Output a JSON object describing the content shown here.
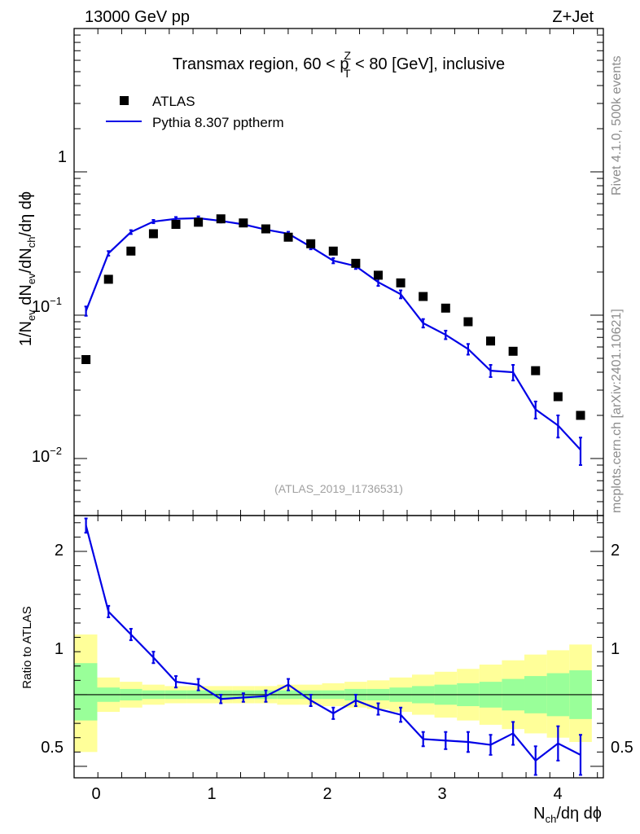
{
  "header": {
    "left": "13000 GeV pp",
    "right": "Z+Jet"
  },
  "side_labels": {
    "rivet": "Rivet 4.1.0,  500k events",
    "mcplots": "mcplots.cern.ch [arXiv:2401.10621]"
  },
  "chart_data": {
    "type": "scatter",
    "title": "Transmax region, 60 < p",
    "title_sup": "Z",
    "title_sub": "T",
    "title_end": " < 80 [GeV], inclusive",
    "watermark": "(ATLAS_2019_I1736531)",
    "xlabel": "N",
    "xlabel_sub": "ch",
    "xlabel_end": "/dη dϕ",
    "ylabel": "1/N",
    "ylabel_sub1": "ev",
    "ylabel_mid": " dN",
    "ylabel_sub2": "ev",
    "ylabel_mid2": "/dN",
    "ylabel_sub3": "ch",
    "ylabel_end": "/dη dϕ",
    "ratio_ylabel": "Ratio to ATLAS",
    "xlim": [
      -0.1,
      4.35
    ],
    "ylim": [
      0.004,
      10
    ],
    "ratio_ylim": [
      0.42,
      2.25
    ],
    "x_ticks": [
      "0",
      "1",
      "2",
      "3",
      "4"
    ],
    "y_ticks": [
      "1",
      "10",
      "10"
    ],
    "y_tick_exps": [
      "",
      "−1",
      "−2"
    ],
    "ratio_ticks": [
      "2",
      "1",
      "0.5"
    ],
    "legend": {
      "data": "ATLAS",
      "mc": "Pythia 8.307 pptherm"
    },
    "x": [
      0.0,
      0.189,
      0.378,
      0.567,
      0.756,
      0.945,
      1.134,
      1.323,
      1.512,
      1.701,
      1.89,
      2.079,
      2.268,
      2.457,
      2.646,
      2.835,
      3.024,
      3.213,
      3.402,
      3.591,
      3.78,
      3.969,
      4.158
    ],
    "series": [
      {
        "name": "ATLAS",
        "values": [
          0.049,
          0.178,
          0.28,
          0.37,
          0.43,
          0.445,
          0.47,
          0.44,
          0.4,
          0.35,
          0.315,
          0.28,
          0.23,
          0.19,
          0.168,
          0.135,
          0.112,
          0.09,
          0.066,
          0.056,
          0.041,
          0.027,
          0.02
        ]
      },
      {
        "name": "Pythia 8.307 pptherm",
        "values": [
          0.107,
          0.27,
          0.38,
          0.45,
          0.47,
          0.475,
          0.455,
          0.43,
          0.395,
          0.37,
          0.3,
          0.24,
          0.22,
          0.17,
          0.14,
          0.088,
          0.073,
          0.058,
          0.041,
          0.04,
          0.022,
          0.017,
          0.0115
        ],
        "errors": [
          0.008,
          0.01,
          0.012,
          0.012,
          0.014,
          0.014,
          0.012,
          0.012,
          0.012,
          0.012,
          0.012,
          0.01,
          0.01,
          0.01,
          0.009,
          0.006,
          0.005,
          0.005,
          0.004,
          0.005,
          0.003,
          0.003,
          0.0025
        ]
      }
    ],
    "ratio": {
      "values": [
        2.18,
        1.58,
        1.42,
        1.26,
        1.09,
        1.07,
        0.97,
        0.98,
        0.99,
        1.07,
        0.96,
        0.87,
        0.96,
        0.9,
        0.86,
        0.69,
        0.68,
        0.67,
        0.65,
        0.73,
        0.54,
        0.66,
        0.58
      ],
      "errors": [
        0.05,
        0.04,
        0.04,
        0.04,
        0.04,
        0.04,
        0.03,
        0.03,
        0.04,
        0.04,
        0.04,
        0.04,
        0.04,
        0.04,
        0.05,
        0.05,
        0.06,
        0.07,
        0.07,
        0.08,
        0.1,
        0.12,
        0.14
      ],
      "band_edges": [
        -0.1,
        0.095,
        0.284,
        0.473,
        0.662,
        0.851,
        1.04,
        1.229,
        1.418,
        1.607,
        1.796,
        1.985,
        2.174,
        2.363,
        2.552,
        2.741,
        2.93,
        3.119,
        3.308,
        3.497,
        3.686,
        3.875,
        4.064,
        4.253
      ],
      "stat_hi": [
        1.22,
        1.05,
        1.04,
        1.03,
        1.03,
        1.03,
        1.03,
        1.03,
        1.03,
        1.03,
        1.03,
        1.03,
        1.04,
        1.04,
        1.05,
        1.06,
        1.07,
        1.08,
        1.09,
        1.11,
        1.13,
        1.15,
        1.17
      ],
      "stat_lo": [
        0.82,
        0.95,
        0.96,
        0.97,
        0.97,
        0.97,
        0.97,
        0.97,
        0.97,
        0.97,
        0.97,
        0.97,
        0.96,
        0.96,
        0.95,
        0.94,
        0.93,
        0.92,
        0.91,
        0.89,
        0.87,
        0.85,
        0.83
      ],
      "tot_hi": [
        1.42,
        1.12,
        1.09,
        1.07,
        1.06,
        1.06,
        1.06,
        1.06,
        1.06,
        1.07,
        1.07,
        1.08,
        1.09,
        1.1,
        1.12,
        1.14,
        1.16,
        1.18,
        1.21,
        1.24,
        1.28,
        1.31,
        1.35
      ],
      "tot_lo": [
        0.6,
        0.88,
        0.91,
        0.93,
        0.94,
        0.94,
        0.94,
        0.94,
        0.94,
        0.93,
        0.93,
        0.92,
        0.91,
        0.9,
        0.88,
        0.86,
        0.84,
        0.82,
        0.79,
        0.76,
        0.73,
        0.7,
        0.67
      ]
    }
  },
  "colors": {
    "data": "#000000",
    "mc": "#0000e6",
    "band_stat": "#99ff99",
    "band_total": "#ffff99"
  }
}
